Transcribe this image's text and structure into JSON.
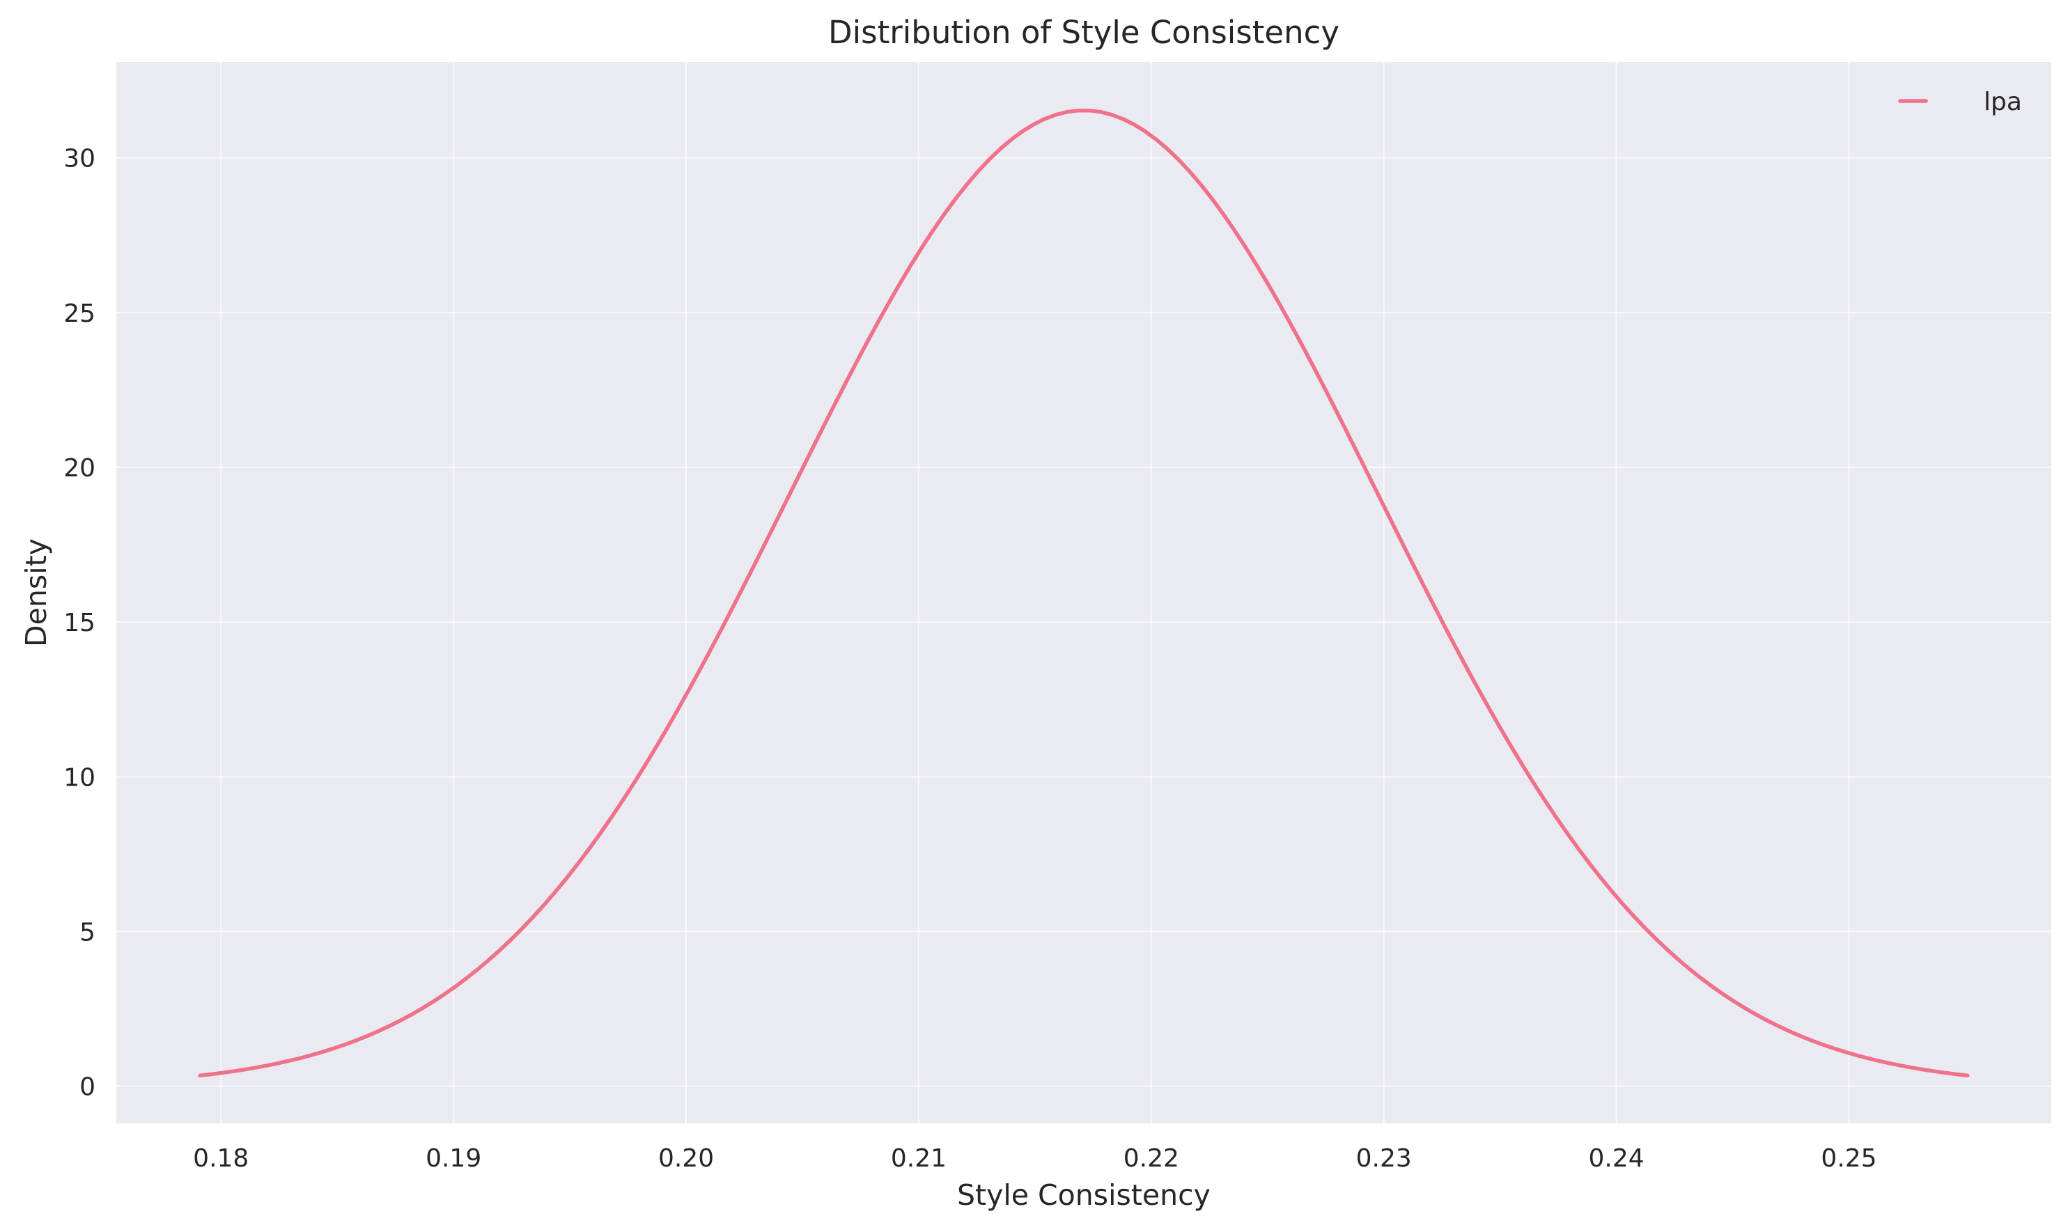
{
  "chart_data": {
    "type": "line",
    "title": "Distribution of Style Consistency",
    "xlabel": "Style Consistency",
    "ylabel": "Density",
    "xlim": [
      0.1755,
      0.2587
    ],
    "ylim": [
      -1.2,
      33.1
    ],
    "xticks": [
      0.18,
      0.19,
      0.2,
      0.21,
      0.22,
      0.23,
      0.24,
      0.25
    ],
    "xtick_labels": [
      "0.18",
      "0.19",
      "0.20",
      "0.21",
      "0.22",
      "0.23",
      "0.24",
      "0.25"
    ],
    "yticks": [
      0,
      5,
      10,
      15,
      20,
      25,
      30
    ],
    "ytick_labels": [
      "0",
      "5",
      "10",
      "15",
      "20",
      "25",
      "30"
    ],
    "grid": true,
    "legend": {
      "placement": "top-right"
    },
    "series": [
      {
        "name": "lpa",
        "color": "#f0718a",
        "distribution": {
          "kind": "normal-density",
          "mean": 0.2171,
          "std": 0.01265,
          "x_start": 0.1791,
          "x_end": 0.2551,
          "points": 160
        }
      }
    ]
  }
}
